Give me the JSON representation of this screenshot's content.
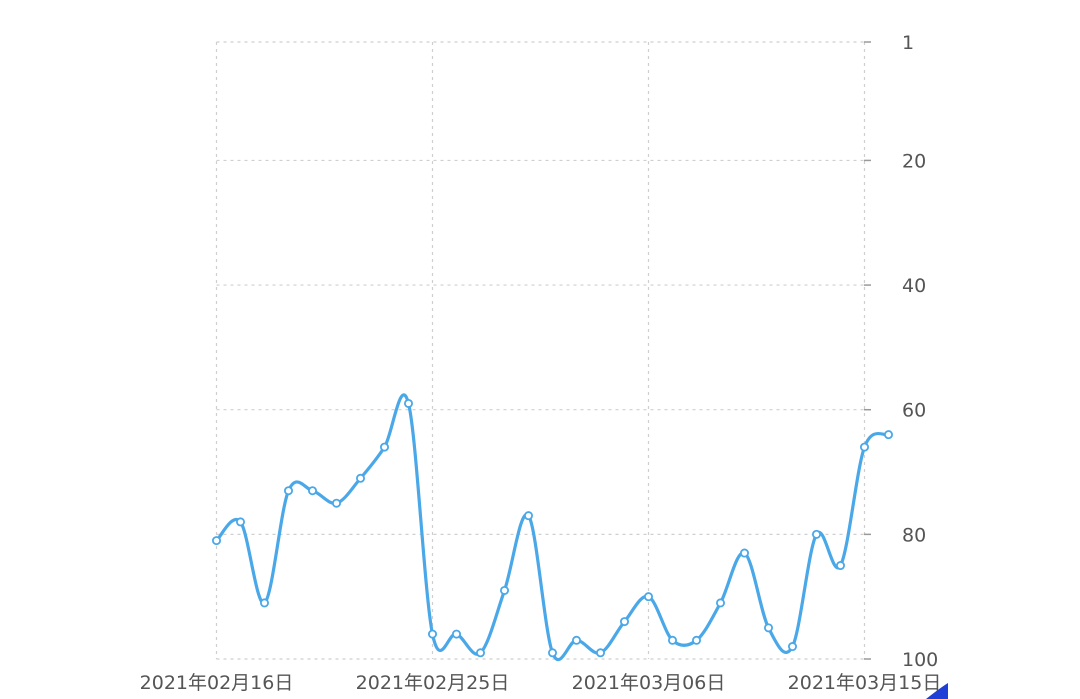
{
  "chart_data": {
    "type": "line",
    "title": "",
    "xlabel": "",
    "ylabel": "",
    "y_axis_position": "right",
    "y_inverted": true,
    "ylim": [
      1,
      100
    ],
    "y_ticks": [
      1,
      20,
      40,
      60,
      80,
      100
    ],
    "x_tick_labels": [
      "2021年02月16日",
      "2021年02月25日",
      "2021年03月06日",
      "2021年03月15日"
    ],
    "grid": true,
    "smooth": true,
    "line_color": "#4aa8e8",
    "series": [
      {
        "x": [
          "2021-02-16",
          "2021-02-17",
          "2021-02-18",
          "2021-02-19",
          "2021-02-20",
          "2021-02-21",
          "2021-02-22",
          "2021-02-23",
          "2021-02-24",
          "2021-02-25",
          "2021-02-26",
          "2021-02-27",
          "2021-02-28",
          "2021-03-01",
          "2021-03-02",
          "2021-03-03",
          "2021-03-04",
          "2021-03-05",
          "2021-03-06",
          "2021-03-07",
          "2021-03-08",
          "2021-03-09",
          "2021-03-10",
          "2021-03-11",
          "2021-03-12",
          "2021-03-13",
          "2021-03-14",
          "2021-03-15",
          "2021-03-16"
        ],
        "values": [
          81,
          78,
          91,
          73,
          73,
          75,
          71,
          66,
          59,
          96,
          96,
          99,
          89,
          77,
          99,
          97,
          99,
          94,
          90,
          97,
          97,
          91,
          83,
          95,
          98,
          80,
          85,
          66,
          64
        ]
      }
    ]
  }
}
